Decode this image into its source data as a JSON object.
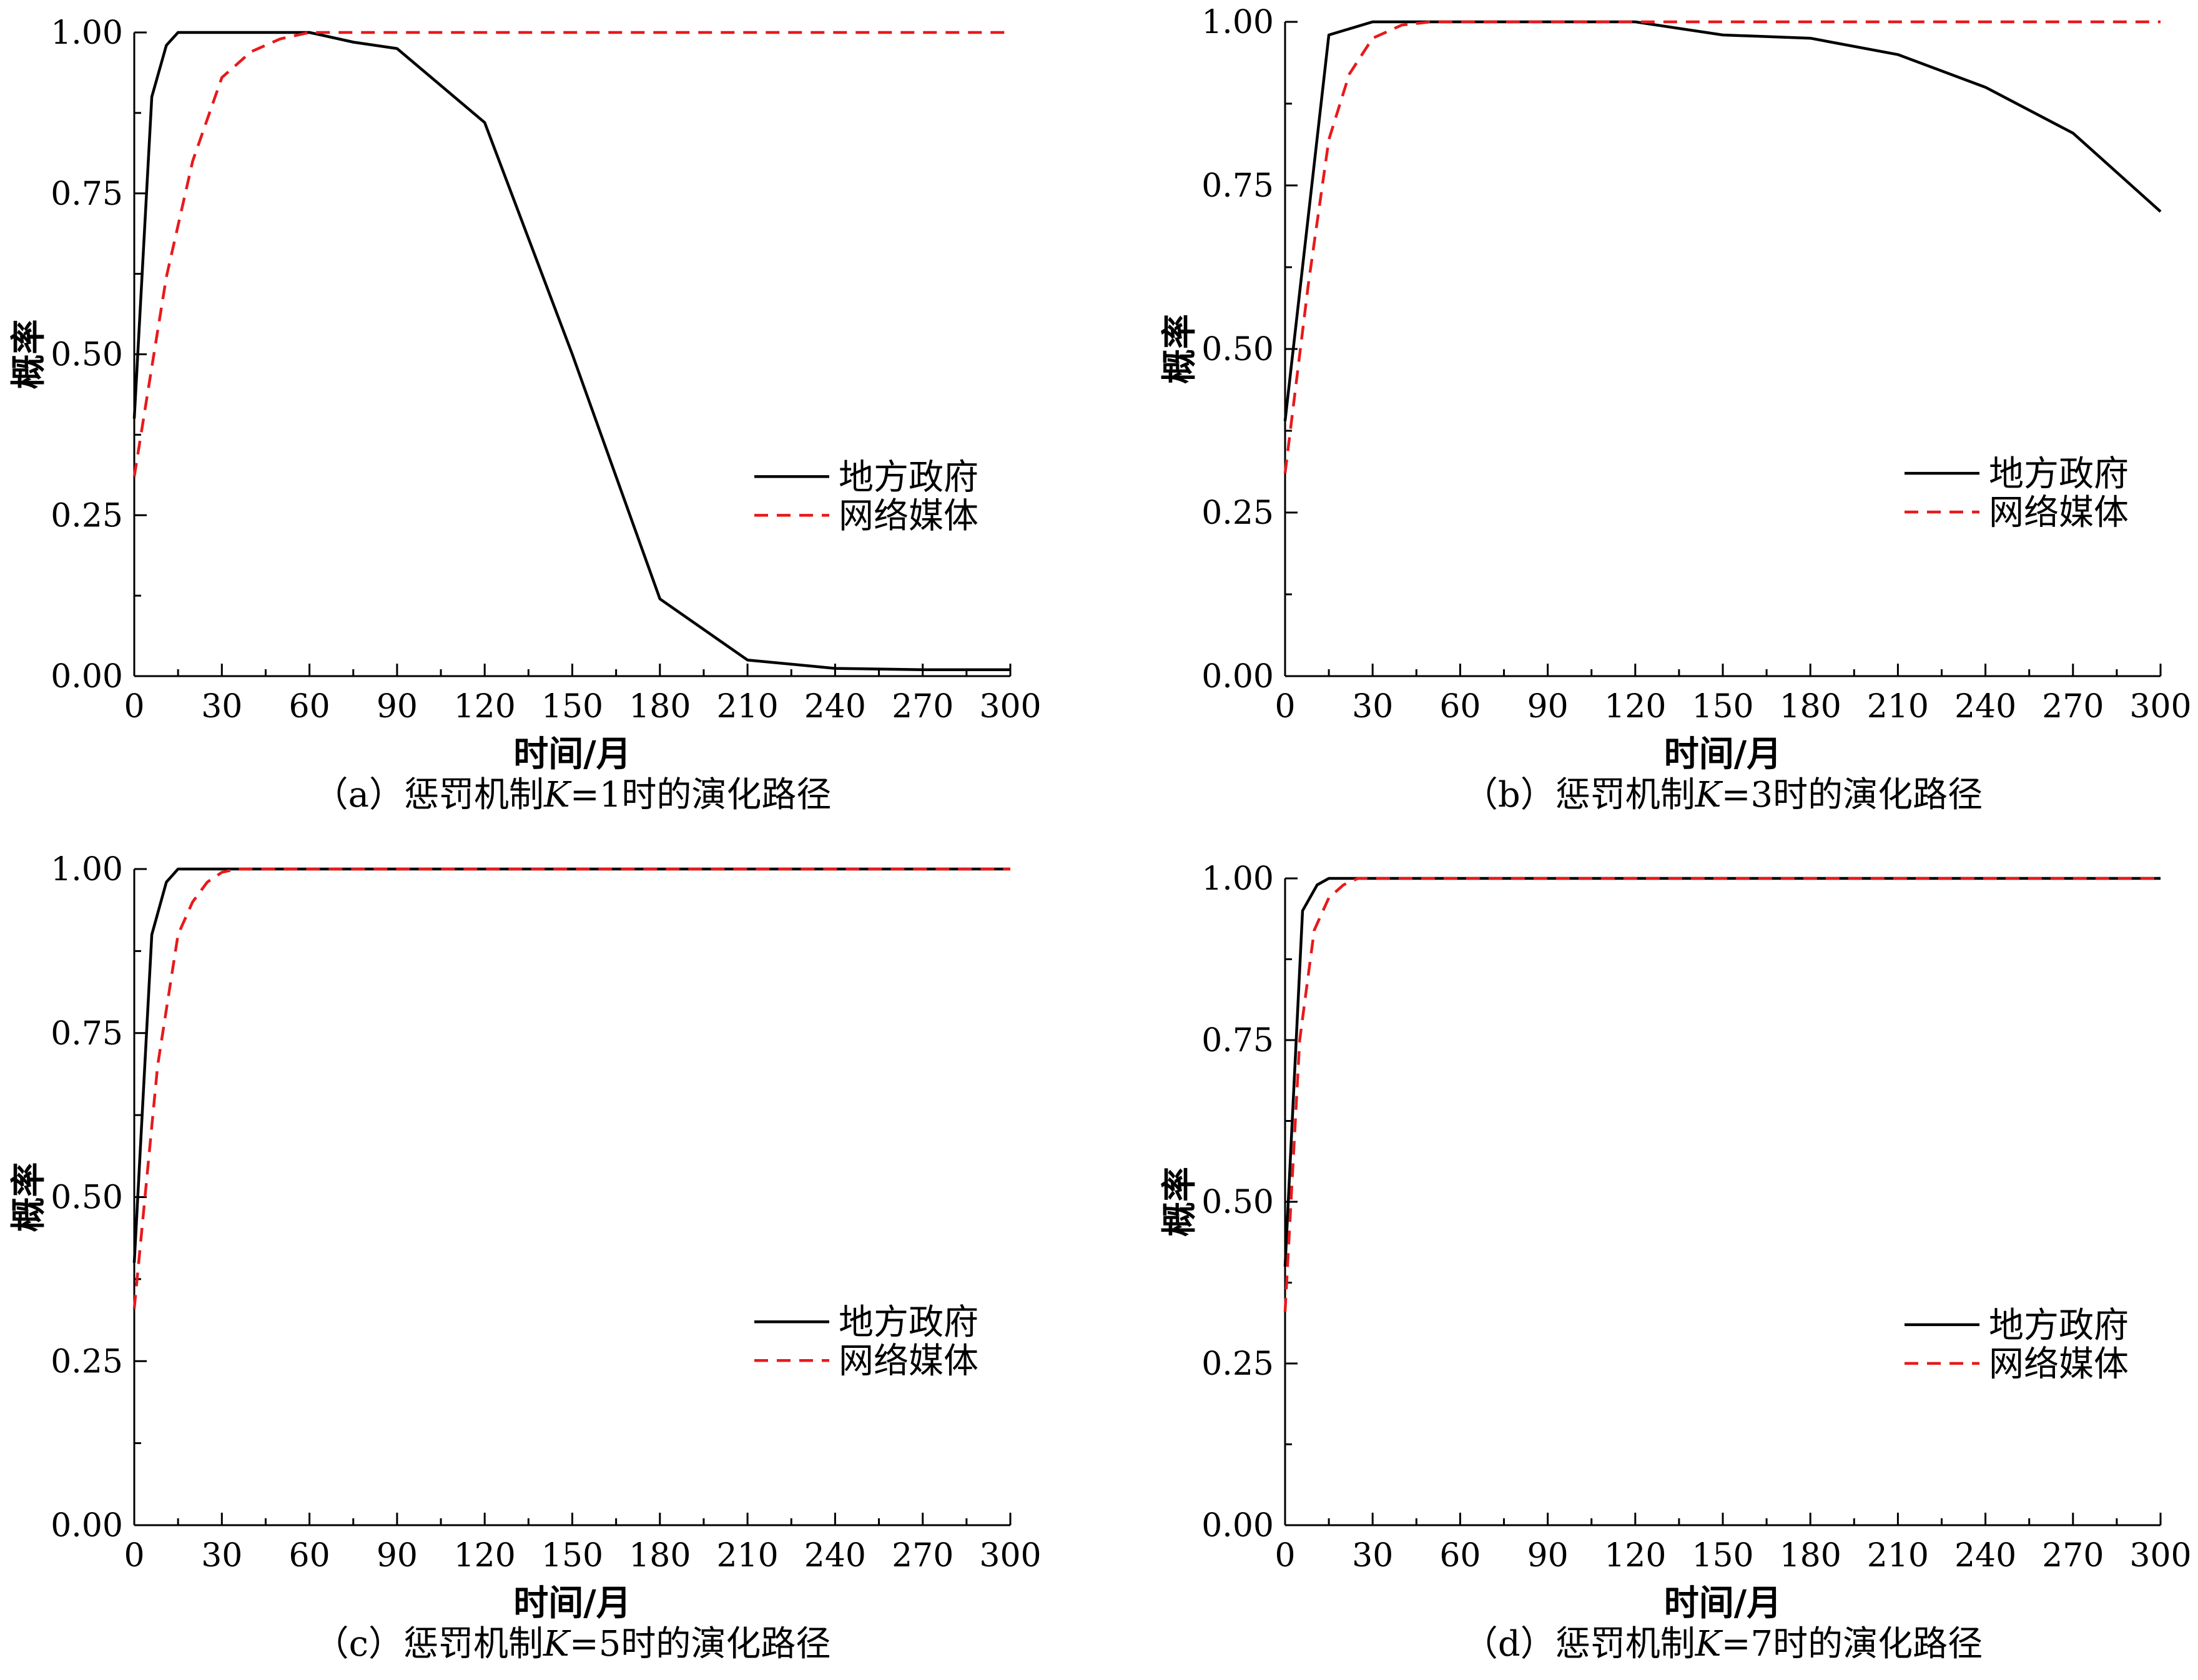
{
  "chart_data": [
    {
      "type": "line",
      "caption_prefix": "（a）惩罚机制",
      "caption_k": "K",
      "caption_suffix": "=1时的演化路径",
      "xlabel": "时间/月",
      "ylabel": "概率",
      "xlim": [
        0,
        300
      ],
      "ylim": [
        0,
        1
      ],
      "xticks": [
        "0",
        "30",
        "60",
        "90",
        "120",
        "150",
        "180",
        "210",
        "240",
        "270",
        "300"
      ],
      "yticks": [
        "0.00",
        "0.25",
        "0.50",
        "0.75",
        "1.00"
      ],
      "legend_position": "center-right",
      "series": [
        {
          "name": "地方政府",
          "color": "#000000",
          "dash": "solid",
          "x": [
            0,
            6,
            11,
            15,
            20,
            30,
            45,
            60,
            75,
            90,
            120,
            150,
            180,
            210,
            240,
            270,
            300
          ],
          "y": [
            0.4,
            0.9,
            0.98,
            1.0,
            1.0,
            1.0,
            1.0,
            1.0,
            0.985,
            0.975,
            0.86,
            0.5,
            0.12,
            0.025,
            0.012,
            0.01,
            0.01
          ]
        },
        {
          "name": "网络媒体",
          "color": "#e8191b",
          "dash": "dashed",
          "x": [
            0,
            6,
            11,
            15,
            20,
            30,
            40,
            50,
            60,
            300
          ],
          "y": [
            0.31,
            0.48,
            0.62,
            0.7,
            0.8,
            0.93,
            0.97,
            0.99,
            1.0,
            1.0
          ]
        }
      ]
    },
    {
      "type": "line",
      "caption_prefix": "（b）惩罚机制",
      "caption_k": "K",
      "caption_suffix": "=3时的演化路径",
      "xlabel": "时间/月",
      "ylabel": "概率",
      "xlim": [
        0,
        300
      ],
      "ylim": [
        0,
        1
      ],
      "xticks": [
        "0",
        "30",
        "60",
        "90",
        "120",
        "150",
        "180",
        "210",
        "240",
        "270",
        "300"
      ],
      "yticks": [
        "0.00",
        "0.25",
        "0.50",
        "0.75",
        "1.00"
      ],
      "legend_position": "center-right",
      "series": [
        {
          "name": "地方政府",
          "color": "#000000",
          "dash": "solid",
          "x": [
            0,
            15,
            30,
            45,
            60,
            90,
            120,
            150,
            180,
            210,
            240,
            270,
            300
          ],
          "y": [
            0.39,
            0.98,
            1.0,
            1.0,
            1.0,
            1.0,
            1.0,
            0.98,
            0.975,
            0.95,
            0.9,
            0.83,
            0.71
          ]
        },
        {
          "name": "网络媒体",
          "color": "#e8191b",
          "dash": "dashed",
          "x": [
            0,
            8,
            15,
            22,
            30,
            40,
            50,
            300
          ],
          "y": [
            0.31,
            0.6,
            0.82,
            0.92,
            0.975,
            0.995,
            1.0,
            1.0
          ]
        }
      ]
    },
    {
      "type": "line",
      "caption_prefix": "（c）惩罚机制",
      "caption_k": "K",
      "caption_suffix": "=5时的演化路径",
      "xlabel": "时间/月",
      "ylabel": "概率",
      "xlim": [
        0,
        300
      ],
      "ylim": [
        0,
        1
      ],
      "xticks": [
        "0",
        "30",
        "60",
        "90",
        "120",
        "150",
        "180",
        "210",
        "240",
        "270",
        "300"
      ],
      "yticks": [
        "0.00",
        "0.25",
        "0.50",
        "0.75",
        "1.00"
      ],
      "legend_position": "center-right",
      "series": [
        {
          "name": "地方政府",
          "color": "#000000",
          "dash": "solid",
          "x": [
            0,
            6,
            11,
            15,
            20,
            300
          ],
          "y": [
            0.4,
            0.9,
            0.98,
            1.0,
            1.0,
            1.0
          ]
        },
        {
          "name": "网络媒体",
          "color": "#e8191b",
          "dash": "dashed",
          "x": [
            0,
            8,
            15,
            20,
            25,
            30,
            35,
            300
          ],
          "y": [
            0.33,
            0.7,
            0.9,
            0.95,
            0.98,
            0.995,
            1.0,
            1.0
          ]
        }
      ]
    },
    {
      "type": "line",
      "caption_prefix": "（d）惩罚机制",
      "caption_k": "K",
      "caption_suffix": "=7时的演化路径",
      "xlabel": "时间/月",
      "ylabel": "概率",
      "xlim": [
        0,
        300
      ],
      "ylim": [
        0,
        1
      ],
      "xticks": [
        "0",
        "30",
        "60",
        "90",
        "120",
        "150",
        "180",
        "210",
        "240",
        "270",
        "300"
      ],
      "yticks": [
        "0.00",
        "0.25",
        "0.50",
        "0.75",
        "1.00"
      ],
      "legend_position": "center-right",
      "series": [
        {
          "name": "地方政府",
          "color": "#000000",
          "dash": "solid",
          "x": [
            0,
            6,
            11,
            15,
            20,
            300
          ],
          "y": [
            0.4,
            0.95,
            0.99,
            1.0,
            1.0,
            1.0
          ]
        },
        {
          "name": "网络媒体",
          "color": "#e8191b",
          "dash": "dashed",
          "x": [
            0,
            5,
            10,
            15,
            20,
            25,
            300
          ],
          "y": [
            0.33,
            0.75,
            0.92,
            0.97,
            0.99,
            1.0,
            1.0
          ]
        }
      ]
    }
  ]
}
